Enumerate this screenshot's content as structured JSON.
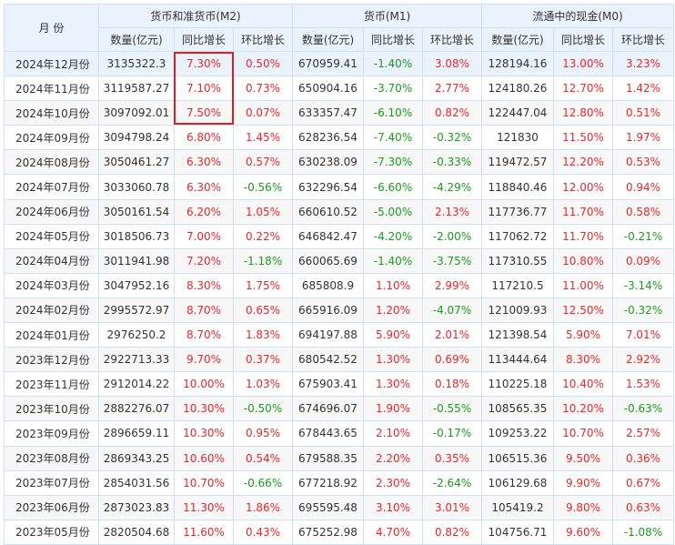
{
  "header": {
    "month_label": "月  份",
    "groups": [
      {
        "label": "货币和准货币(M2)"
      },
      {
        "label": "货币(M1)"
      },
      {
        "label": "流通中的现金(M0)"
      }
    ],
    "sub": [
      "数量(亿元)",
      "同比增长",
      "环比增长"
    ]
  },
  "colors": {
    "up": "#e8262b",
    "down": "#1a9b1a",
    "header_bg": "#eaf2fc",
    "border": "#cfe0f3",
    "highlight": "#e02020"
  },
  "rows": [
    {
      "month": "2024年12月份",
      "m2": "3135322.3",
      "m2y": "7.30%",
      "m2m": "0.50%",
      "m1": "670959.41",
      "m1y": "-1.40%",
      "m1m": "3.08%",
      "m0": "128194.16",
      "m0y": "13.00%",
      "m0m": "3.23%"
    },
    {
      "month": "2024年11月份",
      "m2": "3119587.27",
      "m2y": "7.10%",
      "m2m": "0.73%",
      "m1": "650904.16",
      "m1y": "-3.70%",
      "m1m": "2.77%",
      "m0": "124180.26",
      "m0y": "12.70%",
      "m0m": "1.42%"
    },
    {
      "month": "2024年10月份",
      "m2": "3097092.01",
      "m2y": "7.50%",
      "m2m": "0.07%",
      "m1": "633357.47",
      "m1y": "-6.10%",
      "m1m": "0.82%",
      "m0": "122447.04",
      "m0y": "12.80%",
      "m0m": "0.51%"
    },
    {
      "month": "2024年09月份",
      "m2": "3094798.24",
      "m2y": "6.80%",
      "m2m": "1.45%",
      "m1": "628236.54",
      "m1y": "-7.40%",
      "m1m": "-0.32%",
      "m0": "121830",
      "m0y": "11.50%",
      "m0m": "1.97%"
    },
    {
      "month": "2024年08月份",
      "m2": "3050461.27",
      "m2y": "6.30%",
      "m2m": "0.57%",
      "m1": "630238.09",
      "m1y": "-7.30%",
      "m1m": "-0.33%",
      "m0": "119472.57",
      "m0y": "12.20%",
      "m0m": "0.53%"
    },
    {
      "month": "2024年07月份",
      "m2": "3033060.78",
      "m2y": "6.30%",
      "m2m": "-0.56%",
      "m1": "632296.54",
      "m1y": "-6.60%",
      "m1m": "-4.29%",
      "m0": "118840.46",
      "m0y": "12.00%",
      "m0m": "0.94%"
    },
    {
      "month": "2024年06月份",
      "m2": "3050161.54",
      "m2y": "6.20%",
      "m2m": "1.05%",
      "m1": "660610.52",
      "m1y": "-5.00%",
      "m1m": "2.13%",
      "m0": "117736.77",
      "m0y": "11.70%",
      "m0m": "0.58%"
    },
    {
      "month": "2024年05月份",
      "m2": "3018506.73",
      "m2y": "7.00%",
      "m2m": "0.22%",
      "m1": "646842.47",
      "m1y": "-4.20%",
      "m1m": "-2.00%",
      "m0": "117062.72",
      "m0y": "11.70%",
      "m0m": "-0.21%"
    },
    {
      "month": "2024年04月份",
      "m2": "3011941.98",
      "m2y": "7.20%",
      "m2m": "-1.18%",
      "m1": "660065.69",
      "m1y": "-1.40%",
      "m1m": "-3.75%",
      "m0": "117310.55",
      "m0y": "10.80%",
      "m0m": "0.09%"
    },
    {
      "month": "2024年03月份",
      "m2": "3047952.16",
      "m2y": "8.30%",
      "m2m": "1.75%",
      "m1": "685808.9",
      "m1y": "1.10%",
      "m1m": "2.99%",
      "m0": "117210.5",
      "m0y": "11.00%",
      "m0m": "-3.14%"
    },
    {
      "month": "2024年02月份",
      "m2": "2995572.97",
      "m2y": "8.70%",
      "m2m": "0.65%",
      "m1": "665916.09",
      "m1y": "1.20%",
      "m1m": "-4.07%",
      "m0": "121009.93",
      "m0y": "12.50%",
      "m0m": "-0.32%"
    },
    {
      "month": "2024年01月份",
      "m2": "2976250.2",
      "m2y": "8.70%",
      "m2m": "1.83%",
      "m1": "694197.88",
      "m1y": "5.90%",
      "m1m": "2.01%",
      "m0": "121398.54",
      "m0y": "5.90%",
      "m0m": "7.01%"
    },
    {
      "month": "2023年12月份",
      "m2": "2922713.33",
      "m2y": "9.70%",
      "m2m": "0.37%",
      "m1": "680542.52",
      "m1y": "1.30%",
      "m1m": "0.69%",
      "m0": "113444.64",
      "m0y": "8.30%",
      "m0m": "2.92%"
    },
    {
      "month": "2023年11月份",
      "m2": "2912014.22",
      "m2y": "10.00%",
      "m2m": "1.03%",
      "m1": "675903.41",
      "m1y": "1.30%",
      "m1m": "0.18%",
      "m0": "110225.18",
      "m0y": "10.40%",
      "m0m": "1.53%"
    },
    {
      "month": "2023年10月份",
      "m2": "2882276.07",
      "m2y": "10.30%",
      "m2m": "-0.50%",
      "m1": "674696.07",
      "m1y": "1.90%",
      "m1m": "-0.55%",
      "m0": "108565.35",
      "m0y": "10.20%",
      "m0m": "-0.63%"
    },
    {
      "month": "2023年09月份",
      "m2": "2896659.11",
      "m2y": "10.30%",
      "m2m": "0.95%",
      "m1": "678443.65",
      "m1y": "2.10%",
      "m1m": "-0.17%",
      "m0": "109253.22",
      "m0y": "10.70%",
      "m0m": "2.57%"
    },
    {
      "month": "2023年08月份",
      "m2": "2869343.25",
      "m2y": "10.60%",
      "m2m": "0.54%",
      "m1": "679588.35",
      "m1y": "2.20%",
      "m1m": "0.35%",
      "m0": "106515.36",
      "m0y": "9.50%",
      "m0m": "0.36%"
    },
    {
      "month": "2023年07月份",
      "m2": "2854031.56",
      "m2y": "10.70%",
      "m2m": "-0.66%",
      "m1": "677218.92",
      "m1y": "2.30%",
      "m1m": "-2.64%",
      "m0": "106129.68",
      "m0y": "9.90%",
      "m0m": "0.67%"
    },
    {
      "month": "2023年06月份",
      "m2": "2873023.83",
      "m2y": "11.30%",
      "m2m": "1.86%",
      "m1": "695595.48",
      "m1y": "3.10%",
      "m1m": "3.01%",
      "m0": "105419.2",
      "m0y": "9.80%",
      "m0m": "0.63%"
    },
    {
      "month": "2023年05月份",
      "m2": "2820504.68",
      "m2y": "11.60%",
      "m2m": "0.43%",
      "m1": "675252.98",
      "m1y": "4.70%",
      "m1m": "0.82%",
      "m0": "104756.71",
      "m0y": "9.60%",
      "m0m": "-1.08%"
    }
  ]
}
